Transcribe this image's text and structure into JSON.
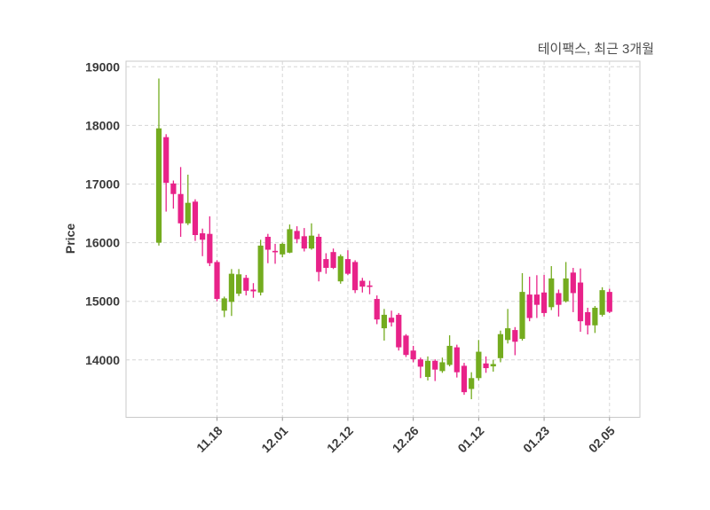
{
  "chart_data": {
    "type": "candlestick",
    "title": "테이팩스, 최근 3개월",
    "ylabel": "Price",
    "y_ticks": [
      19000,
      18000,
      17000,
      16000,
      15000,
      14000
    ],
    "ylim": [
      13050,
      19100
    ],
    "x_tick_labels": [
      "11.18",
      "12.01",
      "12.12",
      "12.26",
      "01.12",
      "01.23",
      "02.05"
    ],
    "x_tick_indices": [
      8,
      17,
      26,
      35,
      44,
      53,
      62
    ],
    "grid": true,
    "legend_position": "none",
    "colors": {
      "up": "#74ac1f",
      "down": "#e82289",
      "grid": "#d6d6d6",
      "border": "#c9c9c9",
      "tick_text": "#3a3a3a",
      "title_text": "#4d4d4d",
      "background": "#ffffff"
    },
    "candles_ohlc": [
      [
        16000,
        18800,
        15950,
        17950
      ],
      [
        17800,
        17850,
        16530,
        17020
      ],
      [
        17010,
        17060,
        16580,
        16830
      ],
      [
        16830,
        17290,
        16100,
        16330
      ],
      [
        16330,
        17160,
        16300,
        16680
      ],
      [
        16700,
        16740,
        16030,
        16130
      ],
      [
        16160,
        16240,
        15770,
        16050
      ],
      [
        16150,
        16450,
        15600,
        15650
      ],
      [
        15670,
        15700,
        15000,
        15040
      ],
      [
        14840,
        15080,
        14730,
        15050
      ],
      [
        14990,
        15550,
        14750,
        15470
      ],
      [
        15130,
        15550,
        15090,
        15460
      ],
      [
        15400,
        15450,
        15100,
        15180
      ],
      [
        15200,
        15310,
        15060,
        15170
      ],
      [
        15150,
        16050,
        15100,
        15950
      ],
      [
        16100,
        16150,
        15650,
        15880
      ],
      [
        15860,
        15980,
        15640,
        15840
      ],
      [
        15800,
        16000,
        15750,
        15980
      ],
      [
        15830,
        16310,
        15820,
        16230
      ],
      [
        16200,
        16280,
        15990,
        16060
      ],
      [
        16110,
        16250,
        15850,
        15900
      ],
      [
        15900,
        16330,
        15880,
        16120
      ],
      [
        16100,
        16150,
        15340,
        15500
      ],
      [
        15720,
        15820,
        15470,
        15570
      ],
      [
        15840,
        15900,
        15550,
        15570
      ],
      [
        15340,
        15800,
        15300,
        15770
      ],
      [
        15720,
        15870,
        15450,
        15470
      ],
      [
        15670,
        15700,
        15140,
        15190
      ],
      [
        15350,
        15400,
        15150,
        15250
      ],
      [
        15270,
        15350,
        15120,
        15260
      ],
      [
        15040,
        15100,
        14610,
        14690
      ],
      [
        14540,
        14870,
        14330,
        14770
      ],
      [
        14720,
        14840,
        14570,
        14640
      ],
      [
        14770,
        14800,
        14160,
        14215
      ],
      [
        14415,
        14440,
        14050,
        14085
      ],
      [
        14160,
        14240,
        13960,
        14010
      ],
      [
        14010,
        14040,
        13690,
        13885
      ],
      [
        13710,
        14060,
        13650,
        13985
      ],
      [
        13985,
        14010,
        13640,
        13835
      ],
      [
        13810,
        14040,
        13780,
        13960
      ],
      [
        13915,
        14420,
        13890,
        14240
      ],
      [
        14215,
        14260,
        13700,
        13790
      ],
      [
        13900,
        13950,
        13405,
        13450
      ],
      [
        13505,
        13790,
        13330,
        13690
      ],
      [
        13690,
        14340,
        13650,
        14140
      ],
      [
        13940,
        14060,
        13780,
        13860
      ],
      [
        13890,
        14000,
        13800,
        13930
      ],
      [
        14030,
        14500,
        13960,
        14440
      ],
      [
        14340,
        14870,
        14280,
        14540
      ],
      [
        14510,
        14560,
        14080,
        14310
      ],
      [
        14360,
        15480,
        14330,
        15160
      ],
      [
        15115,
        15420,
        14660,
        14715
      ],
      [
        15115,
        15445,
        14715,
        14940
      ],
      [
        15150,
        15450,
        14740,
        14800
      ],
      [
        14900,
        15600,
        14850,
        15390
      ],
      [
        15140,
        15200,
        14740,
        14940
      ],
      [
        15000,
        15670,
        14980,
        15390
      ],
      [
        15490,
        15570,
        14815,
        15140
      ],
      [
        15320,
        15560,
        14480,
        14660
      ],
      [
        14815,
        14890,
        14435,
        14590
      ],
      [
        14590,
        14920,
        14460,
        14890
      ],
      [
        14770,
        15240,
        14740,
        15190
      ],
      [
        15160,
        15215,
        14800,
        14820
      ]
    ]
  }
}
